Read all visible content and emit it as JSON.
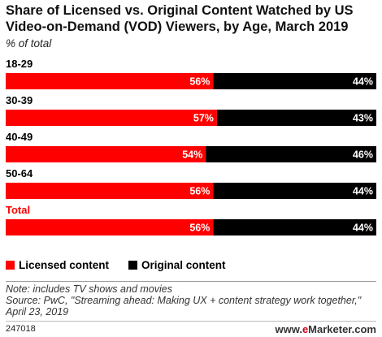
{
  "chart_data": {
    "type": "bar",
    "orientation": "horizontal",
    "stacked": true,
    "title": "Share of Licensed vs. Original Content Watched by US Video-on-Demand (VOD) Viewers, by Age, March 2019",
    "subtitle": "% of total",
    "categories": [
      "18-29",
      "30-39",
      "40-49",
      "50-64",
      "Total"
    ],
    "series": [
      {
        "name": "Licensed content",
        "color": "#ff0000",
        "values": [
          56,
          57,
          54,
          56,
          56
        ],
        "labels": [
          "56%",
          "57%",
          "54%",
          "56%",
          "56%"
        ]
      },
      {
        "name": "Original content",
        "color": "#000000",
        "values": [
          44,
          43,
          46,
          44,
          44
        ],
        "labels": [
          "44%",
          "43%",
          "46%",
          "44%",
          "44%"
        ]
      }
    ],
    "xlim": [
      0,
      100
    ],
    "grid": false,
    "legend_position": "bottom-left",
    "highlight_category": "Total",
    "highlight_color": "#ff0000"
  },
  "footer": {
    "note": "Note: includes TV shows and movies",
    "source": "Source: PwC, \"Streaming ahead: Making UX + content strategy work together,\" April 23, 2019",
    "chart_id": "247018",
    "brand_prefix": "www.",
    "brand_mark": "e",
    "brand_suffix": "Marketer.com"
  }
}
